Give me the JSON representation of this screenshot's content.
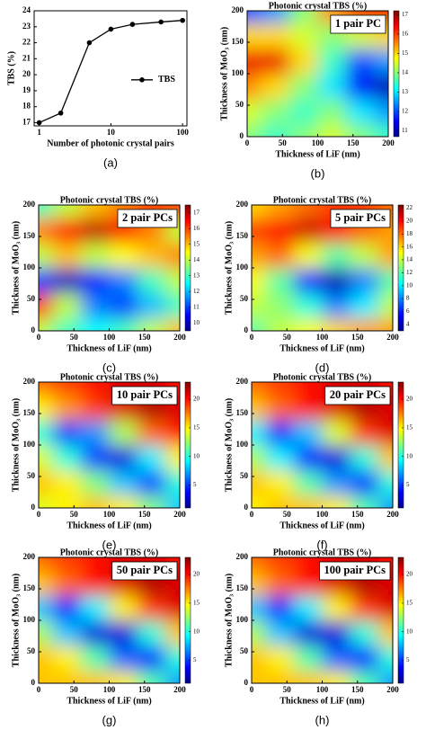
{
  "chart_data": [
    {
      "type": "line",
      "xlabel": "Number of photonic crystal pairs",
      "ylabel": "TBS (%)",
      "caption": "(a)",
      "log_x": true,
      "x": [
        1,
        2,
        5,
        10,
        20,
        50,
        100
      ],
      "series": [
        {
          "name": "TBS",
          "color": "#000000",
          "values": [
            17.0,
            17.6,
            22.0,
            22.85,
            23.15,
            23.3,
            23.4
          ]
        }
      ],
      "xlim": [
        0.85,
        115
      ],
      "xticks": [
        1,
        10,
        100
      ],
      "ylim": [
        16.8,
        24
      ],
      "yticks": [
        17,
        18,
        19,
        20,
        21,
        22,
        23,
        24
      ],
      "legend": "right"
    },
    {
      "type": "heatmap",
      "title": "Photonic crystal TBS (%)",
      "label": "1 pair PC",
      "caption": "(b)",
      "xlabel": "Thickness of LiF (nm)",
      "ylabel": "Thickness of MoO₃ (nm)",
      "colormap": "jet",
      "x": [
        0,
        40,
        80,
        120,
        160,
        200
      ],
      "y": [
        0,
        40,
        80,
        120,
        160,
        200
      ],
      "z": [
        [
          14,
          13.5,
          14,
          14.5,
          14,
          13.5
        ],
        [
          14.5,
          14,
          13.5,
          14,
          13,
          12.5
        ],
        [
          15.5,
          15,
          14,
          13,
          11.5,
          11
        ],
        [
          16.5,
          16.5,
          15,
          13.5,
          12,
          12.5
        ],
        [
          15,
          15,
          14.5,
          14,
          14.5,
          15
        ],
        [
          12,
          12.5,
          14,
          15.5,
          16.5,
          16.5
        ]
      ],
      "xlim": [
        0,
        200
      ],
      "ylim": [
        0,
        200
      ],
      "xticks": [
        0,
        50,
        100,
        150,
        200
      ],
      "yticks": [
        0,
        50,
        100,
        150,
        200
      ],
      "zlim": [
        10.7,
        17.2
      ],
      "zticks": [
        11,
        12,
        13,
        14,
        15,
        16,
        17
      ]
    },
    {
      "type": "heatmap",
      "title": "Photonic crystal TBS (%)",
      "label": "2 pair PCs",
      "caption": "(c)",
      "xlabel": "Thickness of LiF (nm)",
      "ylabel": "Thickness of MoO₃ (nm)",
      "colormap": "jet",
      "x": [
        0,
        40,
        80,
        120,
        160,
        200
      ],
      "y": [
        0,
        40,
        80,
        120,
        160,
        200
      ],
      "z": [
        [
          14,
          13,
          12.5,
          13,
          14,
          15
        ],
        [
          16,
          14,
          11.5,
          11,
          12,
          13
        ],
        [
          11,
          10,
          10.5,
          11.5,
          13,
          14
        ],
        [
          14,
          15,
          14,
          14.5,
          15,
          15.5
        ],
        [
          15.5,
          16.5,
          17,
          16.5,
          15.5,
          14
        ],
        [
          13,
          14,
          15,
          15.5,
          16,
          16.5
        ]
      ],
      "xlim": [
        0,
        200
      ],
      "ylim": [
        0,
        200
      ],
      "xticks": [
        0,
        50,
        100,
        150,
        200
      ],
      "yticks": [
        0,
        50,
        100,
        150,
        200
      ],
      "zlim": [
        9.5,
        17.5
      ],
      "zticks": [
        10,
        11,
        12,
        13,
        14,
        15,
        16,
        17
      ]
    },
    {
      "type": "heatmap",
      "title": "Photonic crystal TBS (%)",
      "label": "5 pair PCs",
      "caption": "(d)",
      "xlabel": "Thickness of LiF (nm)",
      "ylabel": "Thickness of MoO₃ (nm)",
      "colormap": "jet",
      "x": [
        0,
        40,
        80,
        120,
        160,
        200
      ],
      "y": [
        0,
        40,
        80,
        120,
        160,
        200
      ],
      "z": [
        [
          12,
          14,
          15,
          16,
          17,
          17
        ],
        [
          14,
          13,
          11,
          8,
          10,
          14
        ],
        [
          15,
          12,
          6,
          4,
          8,
          12
        ],
        [
          17,
          18,
          15,
          12,
          14,
          17
        ],
        [
          19,
          20,
          21,
          20,
          18,
          17
        ],
        [
          16,
          17,
          18,
          19,
          19,
          18
        ]
      ],
      "xlim": [
        0,
        200
      ],
      "ylim": [
        0,
        200
      ],
      "xticks": [
        0,
        50,
        100,
        150,
        200
      ],
      "yticks": [
        0,
        50,
        100,
        150,
        200
      ],
      "zlim": [
        3,
        22.5
      ],
      "zticks": [
        4,
        6,
        8,
        10,
        12,
        14,
        16,
        18,
        20,
        22
      ]
    },
    {
      "type": "heatmap",
      "title": "Photonic crystal TBS (%)",
      "label": "10 pair PCs",
      "caption": "(e)",
      "xlabel": "Thickness of LiF (nm)",
      "ylabel": "Thickness of MoO₃ (nm)",
      "colormap": "jet",
      "x": [
        0,
        40,
        80,
        120,
        160,
        200
      ],
      "y": [
        0,
        40,
        80,
        120,
        160,
        200
      ],
      "z": [
        [
          14,
          15,
          16,
          15,
          12,
          8
        ],
        [
          16,
          15,
          12,
          8,
          5,
          10
        ],
        [
          14,
          10,
          5,
          3,
          9,
          15
        ],
        [
          10,
          5,
          7,
          13,
          18,
          20
        ],
        [
          15,
          17,
          19,
          21,
          22,
          21
        ],
        [
          18,
          19,
          20,
          21,
          21,
          20
        ]
      ],
      "xlim": [
        0,
        200
      ],
      "ylim": [
        0,
        200
      ],
      "xticks": [
        0,
        50,
        100,
        150,
        200
      ],
      "yticks": [
        0,
        50,
        100,
        150,
        200
      ],
      "zlim": [
        1,
        23
      ],
      "zticks": [
        5,
        10,
        15,
        20
      ]
    },
    {
      "type": "heatmap",
      "title": "Photonic crystal TBS (%)",
      "label": "20 pair PCs",
      "caption": "(f)",
      "xlabel": "Thickness of LiF (nm)",
      "ylabel": "Thickness of MoO₃ (nm)",
      "colormap": "jet",
      "x": [
        0,
        40,
        80,
        120,
        160,
        200
      ],
      "y": [
        0,
        40,
        80,
        120,
        160,
        200
      ],
      "z": [
        [
          15,
          16,
          16,
          15,
          11,
          7
        ],
        [
          16,
          15,
          11,
          7,
          4,
          10
        ],
        [
          13,
          9,
          4,
          3,
          10,
          16
        ],
        [
          9,
          4,
          8,
          14,
          19,
          21
        ],
        [
          16,
          18,
          20,
          21,
          22,
          21
        ],
        [
          18,
          19,
          20,
          21,
          21,
          20
        ]
      ],
      "xlim": [
        0,
        200
      ],
      "ylim": [
        0,
        200
      ],
      "xticks": [
        0,
        50,
        100,
        150,
        200
      ],
      "yticks": [
        0,
        50,
        100,
        150,
        200
      ],
      "zlim": [
        1,
        23
      ],
      "zticks": [
        5,
        10,
        15,
        20
      ]
    },
    {
      "type": "heatmap",
      "title": "Photonic crystal TBS (%)",
      "label": "50 pair PCs",
      "caption": "(g)",
      "xlabel": "Thickness of LiF (nm)",
      "ylabel": "Thickness of MoO₃ (nm)",
      "colormap": "jet",
      "x": [
        0,
        40,
        80,
        120,
        160,
        200
      ],
      "y": [
        0,
        40,
        80,
        120,
        160,
        200
      ],
      "z": [
        [
          16,
          16,
          16,
          15,
          11,
          7
        ],
        [
          16,
          15,
          11,
          6,
          4,
          10
        ],
        [
          13,
          8,
          3,
          3,
          10,
          16
        ],
        [
          8,
          4,
          9,
          15,
          19,
          21
        ],
        [
          16,
          18,
          20,
          21,
          22,
          21
        ],
        [
          18,
          19,
          20,
          21,
          21,
          20
        ]
      ],
      "xlim": [
        0,
        200
      ],
      "ylim": [
        0,
        200
      ],
      "xticks": [
        0,
        50,
        100,
        150,
        200
      ],
      "yticks": [
        0,
        50,
        100,
        150,
        200
      ],
      "zlim": [
        1,
        23
      ],
      "zticks": [
        5,
        10,
        15,
        20
      ]
    },
    {
      "type": "heatmap",
      "title": "Photonic crystal TBS (%)",
      "label": "100 pair PCs",
      "caption": "(h)",
      "xlabel": "Thickness of LiF (nm)",
      "ylabel": "Thickness of MoO₃ (nm)",
      "colormap": "jet",
      "x": [
        0,
        40,
        80,
        120,
        160,
        200
      ],
      "y": [
        0,
        40,
        80,
        120,
        160,
        200
      ],
      "z": [
        [
          16,
          16,
          16,
          15,
          11,
          7
        ],
        [
          16,
          15,
          11,
          6,
          4,
          10
        ],
        [
          13,
          8,
          3,
          3,
          10,
          16
        ],
        [
          8,
          4,
          9,
          15,
          19,
          21
        ],
        [
          16,
          18,
          20,
          21,
          22,
          21
        ],
        [
          18,
          19,
          20,
          21,
          21,
          20
        ]
      ],
      "xlim": [
        0,
        200
      ],
      "ylim": [
        0,
        200
      ],
      "xticks": [
        0,
        50,
        100,
        150,
        200
      ],
      "yticks": [
        0,
        50,
        100,
        150,
        200
      ],
      "zlim": [
        1,
        23
      ],
      "zticks": [
        5,
        10,
        15,
        20
      ]
    }
  ]
}
